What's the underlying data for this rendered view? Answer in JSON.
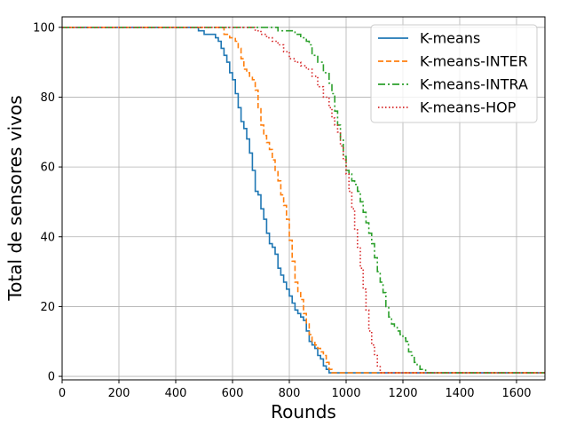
{
  "chart_data": {
    "type": "line",
    "xlabel": "Rounds",
    "ylabel": "Total de sensores vivos",
    "xlim": [
      0,
      1700
    ],
    "ylim": [
      -1,
      103
    ],
    "xticks": [
      0,
      200,
      400,
      600,
      800,
      1000,
      1200,
      1400,
      1600
    ],
    "yticks": [
      0,
      20,
      40,
      60,
      80,
      100
    ],
    "grid": true,
    "legend_position": "top-right",
    "series": [
      {
        "name": "K-means",
        "color": "#1f77b4",
        "style": "solid",
        "x": [
          0,
          460,
          480,
          500,
          520,
          540,
          550,
          560,
          570,
          580,
          590,
          600,
          610,
          620,
          630,
          640,
          650,
          660,
          670,
          680,
          690,
          700,
          710,
          720,
          730,
          740,
          750,
          760,
          770,
          780,
          790,
          800,
          810,
          820,
          830,
          840,
          850,
          860,
          870,
          880,
          890,
          900,
          910,
          920,
          930,
          940,
          950,
          1700
        ],
        "y": [
          100,
          100,
          99,
          98,
          98,
          97,
          96,
          94,
          92,
          90,
          87,
          85,
          81,
          77,
          73,
          71,
          68,
          64,
          59,
          53,
          52,
          48,
          45,
          41,
          38,
          37,
          35,
          31,
          29,
          27,
          25,
          23,
          21,
          19,
          18,
          17,
          16,
          13,
          10,
          9,
          8,
          6,
          5,
          3,
          2,
          1,
          1,
          1
        ]
      },
      {
        "name": "K-means-INTER",
        "color": "#ff7f0e",
        "style": "dashed",
        "x": [
          0,
          550,
          570,
          590,
          610,
          620,
          630,
          640,
          650,
          660,
          670,
          680,
          690,
          700,
          710,
          720,
          730,
          740,
          750,
          760,
          770,
          780,
          790,
          800,
          810,
          820,
          830,
          840,
          850,
          860,
          870,
          880,
          890,
          900,
          910,
          920,
          930,
          940,
          950,
          1700
        ],
        "y": [
          100,
          100,
          98,
          97,
          96,
          94,
          91,
          88,
          87,
          86,
          85,
          82,
          77,
          72,
          69,
          67,
          65,
          62,
          59,
          56,
          52,
          49,
          45,
          39,
          33,
          27,
          24,
          22,
          18,
          15,
          12,
          10,
          9,
          8,
          7,
          6,
          4,
          2,
          1,
          1
        ]
      },
      {
        "name": "K-means-INTRA",
        "color": "#2ca02c",
        "style": "dashdot",
        "x": [
          0,
          740,
          760,
          780,
          800,
          820,
          840,
          860,
          870,
          880,
          900,
          920,
          940,
          950,
          960,
          970,
          980,
          990,
          1000,
          1010,
          1020,
          1030,
          1040,
          1050,
          1060,
          1070,
          1080,
          1090,
          1100,
          1110,
          1120,
          1130,
          1140,
          1150,
          1160,
          1170,
          1180,
          1190,
          1200,
          1210,
          1220,
          1230,
          1240,
          1250,
          1260,
          1270,
          1280,
          1700
        ],
        "y": [
          100,
          100,
          99,
          99,
          99,
          98,
          97,
          96,
          95,
          92,
          90,
          87,
          84,
          81,
          76,
          72,
          68,
          63,
          59,
          58,
          56,
          55,
          53,
          50,
          47,
          44,
          41,
          38,
          34,
          30,
          27,
          24,
          20,
          17,
          15,
          14,
          13,
          12,
          11,
          10,
          7,
          6,
          4,
          3,
          2,
          2,
          1,
          1
        ]
      },
      {
        "name": "K-means-HOP",
        "color": "#d62728",
        "style": "dotted",
        "x": [
          0,
          660,
          680,
          700,
          720,
          740,
          760,
          780,
          800,
          820,
          840,
          860,
          880,
          900,
          920,
          940,
          950,
          960,
          970,
          980,
          990,
          1000,
          1010,
          1020,
          1030,
          1040,
          1050,
          1060,
          1070,
          1080,
          1090,
          1100,
          1110,
          1120,
          1700
        ],
        "y": [
          100,
          100,
          99,
          98,
          97,
          96,
          95,
          93,
          91,
          90,
          89,
          88,
          86,
          83,
          80,
          77,
          74,
          72,
          70,
          66,
          62,
          58,
          53,
          48,
          42,
          37,
          31,
          25,
          19,
          13,
          9,
          6,
          3,
          1,
          1
        ]
      }
    ]
  }
}
